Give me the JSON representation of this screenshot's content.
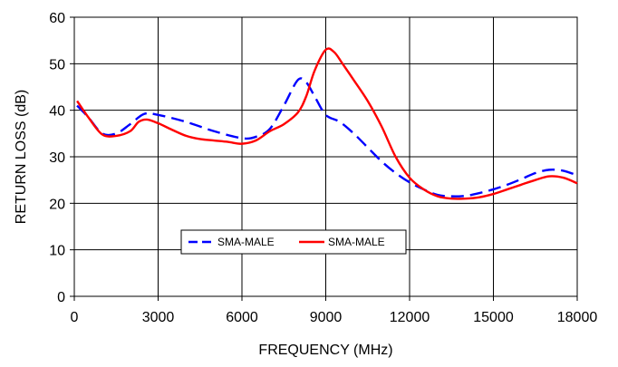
{
  "chart_data": {
    "type": "line",
    "title": "",
    "xlabel": "FREQUENCY (MHz)",
    "ylabel": "RETURN LOSS (dB)",
    "xlim": [
      0,
      18000
    ],
    "ylim": [
      0,
      60
    ],
    "x_ticks": [
      0,
      3000,
      6000,
      9000,
      12000,
      15000,
      18000
    ],
    "x_tick_labels": [
      "0",
      "3000",
      "6000",
      "9000",
      "12000",
      "15000",
      "18000"
    ],
    "y_ticks": [
      0,
      10,
      20,
      30,
      40,
      50,
      60
    ],
    "y_tick_labels": [
      "0",
      "10",
      "20",
      "30",
      "40",
      "50",
      "60"
    ],
    "grid": true,
    "legend_position": "lower-left",
    "series": [
      {
        "name": "SMA-MALE",
        "color": "#0000ff",
        "style": "dashed",
        "x": [
          100,
          500,
          1000,
          1500,
          2000,
          2500,
          3000,
          4000,
          5000,
          6000,
          6500,
          7000,
          7500,
          8000,
          8300,
          8600,
          9000,
          9500,
          10000,
          10500,
          11000,
          11500,
          12000,
          12500,
          13000,
          13500,
          14000,
          14500,
          15000,
          15500,
          16000,
          16500,
          17000,
          17500,
          18000
        ],
        "y": [
          41.0,
          38.5,
          35.0,
          35.0,
          37.0,
          39.2,
          39.0,
          37.5,
          35.5,
          34.0,
          34.3,
          36.0,
          41.0,
          46.5,
          46.0,
          43.0,
          39.0,
          37.5,
          35.0,
          32.0,
          29.0,
          26.5,
          24.5,
          23.0,
          21.8,
          21.5,
          21.6,
          22.2,
          23.0,
          24.0,
          25.2,
          26.5,
          27.2,
          27.0,
          26.0
        ]
      },
      {
        "name": "SMA-MALE",
        "color": "#ff0000",
        "style": "solid",
        "x": [
          100,
          500,
          1000,
          1500,
          2000,
          2300,
          2600,
          3000,
          3500,
          4000,
          4500,
          5000,
          5500,
          6000,
          6500,
          7000,
          7500,
          8000,
          8300,
          8600,
          9000,
          9300,
          9600,
          10000,
          10500,
          11000,
          11500,
          12000,
          12500,
          13000,
          13500,
          14000,
          14500,
          15000,
          15500,
          16000,
          16500,
          17000,
          17500,
          18000
        ],
        "y": [
          42.0,
          38.5,
          34.8,
          34.5,
          35.5,
          37.5,
          38.0,
          37.2,
          35.8,
          34.5,
          33.8,
          33.5,
          33.2,
          32.8,
          33.5,
          35.5,
          37.0,
          39.5,
          43.0,
          48.5,
          53.0,
          52.5,
          50.0,
          46.5,
          42.0,
          36.5,
          30.0,
          25.5,
          23.0,
          21.5,
          21.0,
          21.0,
          21.3,
          22.0,
          23.0,
          24.0,
          25.0,
          25.8,
          25.5,
          24.3
        ]
      }
    ]
  }
}
